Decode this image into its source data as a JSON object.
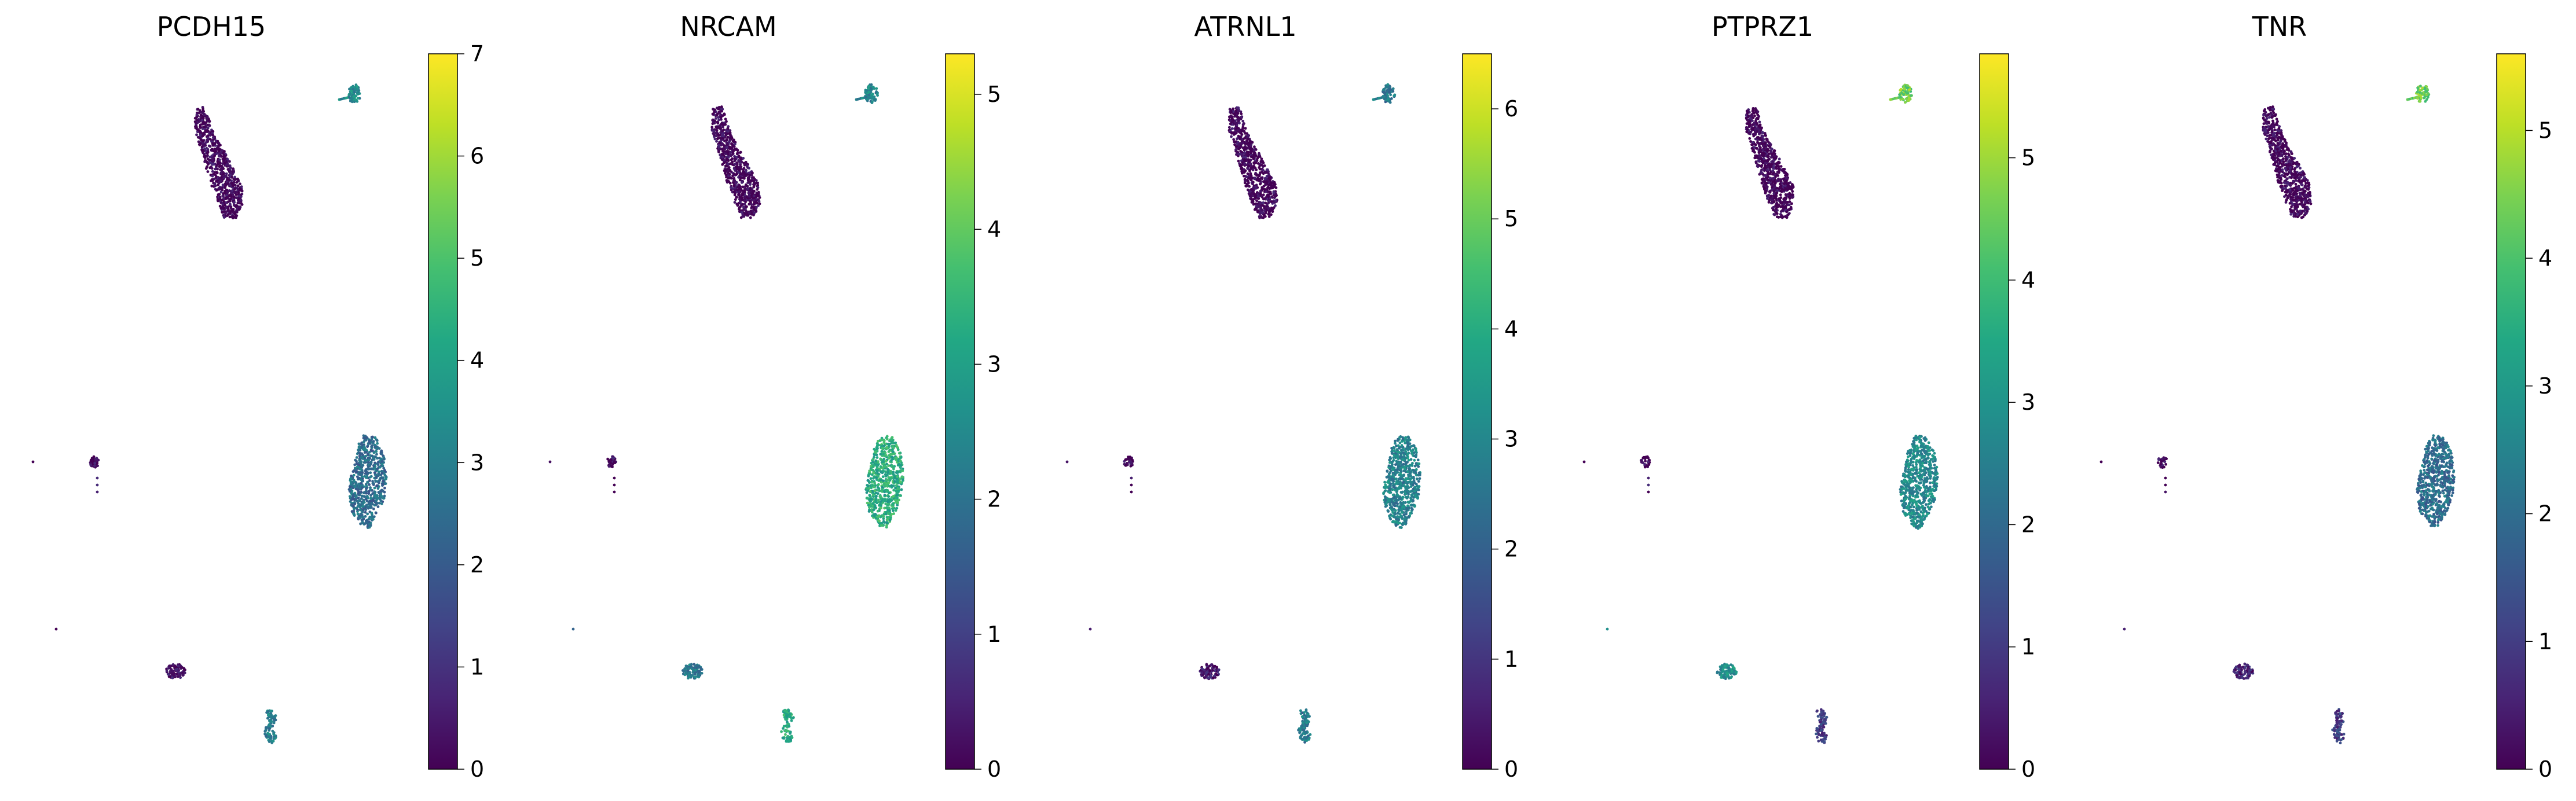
{
  "chart_data": [
    {
      "type": "scatter",
      "title": "PCDH15",
      "colorbar": {
        "vmin": 0,
        "vmax": 7,
        "ticks": [
          0,
          1,
          2,
          3,
          4,
          5,
          6,
          7
        ]
      },
      "clusters": [
        {
          "name": "top-small",
          "value": 3.3
        },
        {
          "name": "top-large",
          "value": 0.0
        },
        {
          "name": "middle-right",
          "value": 2.5
        },
        {
          "name": "left-islet",
          "value": 0.1
        },
        {
          "name": "bottom-left",
          "value": 0.3
        },
        {
          "name": "bottom-right",
          "value": 3.0
        }
      ]
    },
    {
      "type": "scatter",
      "title": "NRCAM",
      "colorbar": {
        "vmin": 0,
        "vmax": 5.3,
        "ticks": [
          0,
          1,
          2,
          3,
          4,
          5
        ]
      },
      "clusters": [
        {
          "name": "top-small",
          "value": 2.4
        },
        {
          "name": "top-large",
          "value": 0.0
        },
        {
          "name": "middle-right",
          "value": 3.3
        },
        {
          "name": "left-islet",
          "value": 0.1
        },
        {
          "name": "bottom-left",
          "value": 2.2
        },
        {
          "name": "bottom-right",
          "value": 3.2
        }
      ]
    },
    {
      "type": "scatter",
      "title": "ATRNL1",
      "colorbar": {
        "vmin": 0,
        "vmax": 6.5,
        "ticks": [
          0,
          1,
          2,
          3,
          4,
          5,
          6
        ]
      },
      "clusters": [
        {
          "name": "top-small",
          "value": 2.6
        },
        {
          "name": "top-large",
          "value": 0.0
        },
        {
          "name": "middle-right",
          "value": 2.9
        },
        {
          "name": "left-islet",
          "value": 0.2
        },
        {
          "name": "bottom-left",
          "value": 0.4
        },
        {
          "name": "bottom-right",
          "value": 2.7
        }
      ]
    },
    {
      "type": "scatter",
      "title": "PTPRZ1",
      "colorbar": {
        "vmin": 0,
        "vmax": 5.85,
        "ticks": [
          0,
          1,
          2,
          3,
          4,
          5
        ]
      },
      "clusters": [
        {
          "name": "top-small",
          "value": 4.6
        },
        {
          "name": "top-large",
          "value": 0.0
        },
        {
          "name": "middle-right",
          "value": 2.8
        },
        {
          "name": "left-islet",
          "value": 0.1
        },
        {
          "name": "bottom-left",
          "value": 2.9
        },
        {
          "name": "bottom-right",
          "value": 1.0
        }
      ]
    },
    {
      "type": "scatter",
      "title": "TNR",
      "colorbar": {
        "vmin": 0,
        "vmax": 5.6,
        "ticks": [
          0,
          1,
          2,
          3,
          4,
          5
        ]
      },
      "clusters": [
        {
          "name": "top-small",
          "value": 4.4
        },
        {
          "name": "top-large",
          "value": 0.0
        },
        {
          "name": "middle-right",
          "value": 2.0
        },
        {
          "name": "left-islet",
          "value": 0.1
        },
        {
          "name": "bottom-left",
          "value": 0.6
        },
        {
          "name": "bottom-right",
          "value": 1.0
        }
      ]
    }
  ]
}
